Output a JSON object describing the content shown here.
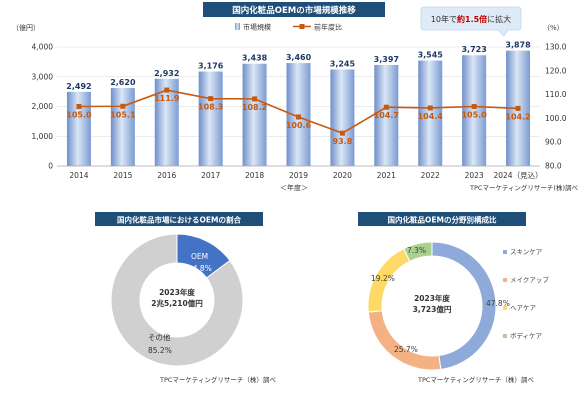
{
  "chart_data": [
    {
      "type": "bar",
      "title": "国内化粧品OEMの市場規模推移",
      "callout": {
        "prefix": "10年で",
        "emphasis": "約1.5倍",
        "suffix": "に拡大"
      },
      "categories": [
        "2014",
        "2015",
        "2016",
        "2017",
        "2018",
        "2019",
        "2020",
        "2021",
        "2022",
        "2023",
        "2024（見込）"
      ],
      "xlabel": "＜年度＞",
      "ylabel_left": "（億円）",
      "ylabel_right": "（%）",
      "ylim_left": [
        0,
        4000
      ],
      "ylim_right": [
        80,
        130
      ],
      "yticks_left": [
        "0",
        "1,000",
        "2,000",
        "3,000",
        "4,000"
      ],
      "yticks_right": [
        "80.0",
        "90.0",
        "100.0",
        "110.0",
        "120.0",
        "130.0"
      ],
      "legend": [
        "市場規模",
        "前年度比"
      ],
      "legend_position": "top",
      "series": [
        {
          "name": "市場規模",
          "kind": "bar",
          "color": "#8eaadb",
          "values": [
            2492,
            2620,
            2932,
            3176,
            3438,
            3460,
            3245,
            3397,
            3545,
            3723,
            3878
          ],
          "labels": [
            "2,492",
            "2,620",
            "2,932",
            "3,176",
            "3,438",
            "3,460",
            "3,245",
            "3,397",
            "3,545",
            "3,723",
            "3,878"
          ]
        },
        {
          "name": "前年度比",
          "kind": "line",
          "axis": "right",
          "color": "#c55a11",
          "values": [
            105.0,
            105.1,
            111.9,
            108.3,
            108.2,
            100.6,
            93.8,
            104.7,
            104.4,
            105.0,
            104.2
          ],
          "labels": [
            "105.0",
            "105.1",
            "111.9",
            "108.3",
            "108.2",
            "100.6",
            "93.8",
            "104.7",
            "104.4",
            "105.0",
            "104.2"
          ]
        }
      ],
      "source": "TPCマーケティングリサーチ(株)調べ"
    },
    {
      "type": "pie",
      "title": "国内化粧品市場におけるOEMの割合",
      "center_text": [
        "2023年度",
        "2兆5,210億円"
      ],
      "slices": [
        {
          "name": "OEM",
          "value": 14.8,
          "label": "14.8%",
          "color": "#4472c4"
        },
        {
          "name": "その他",
          "value": 85.2,
          "label": "85.2%",
          "color": "#d0d0d0"
        }
      ],
      "source": "TPCマーケティングリサーチ（株）調べ"
    },
    {
      "type": "pie",
      "title": "国内化粧品OEMの分野別構成比",
      "center_text": [
        "2023年度",
        "3,723億円"
      ],
      "slices": [
        {
          "name": "スキンケア",
          "value": 47.8,
          "label": "47.8%",
          "color": "#8eaadb"
        },
        {
          "name": "メイクアップ",
          "value": 25.7,
          "label": "25.7%",
          "color": "#f4b183"
        },
        {
          "name": "ヘアケア",
          "value": 19.2,
          "label": "19.2%",
          "color": "#ffd966"
        },
        {
          "name": "ボディケア",
          "value": 7.3,
          "label": "7.3%",
          "color": "#a9d18e"
        }
      ],
      "legend_position": "right",
      "source": "TPCマーケティングリサーチ（株）調べ"
    }
  ]
}
